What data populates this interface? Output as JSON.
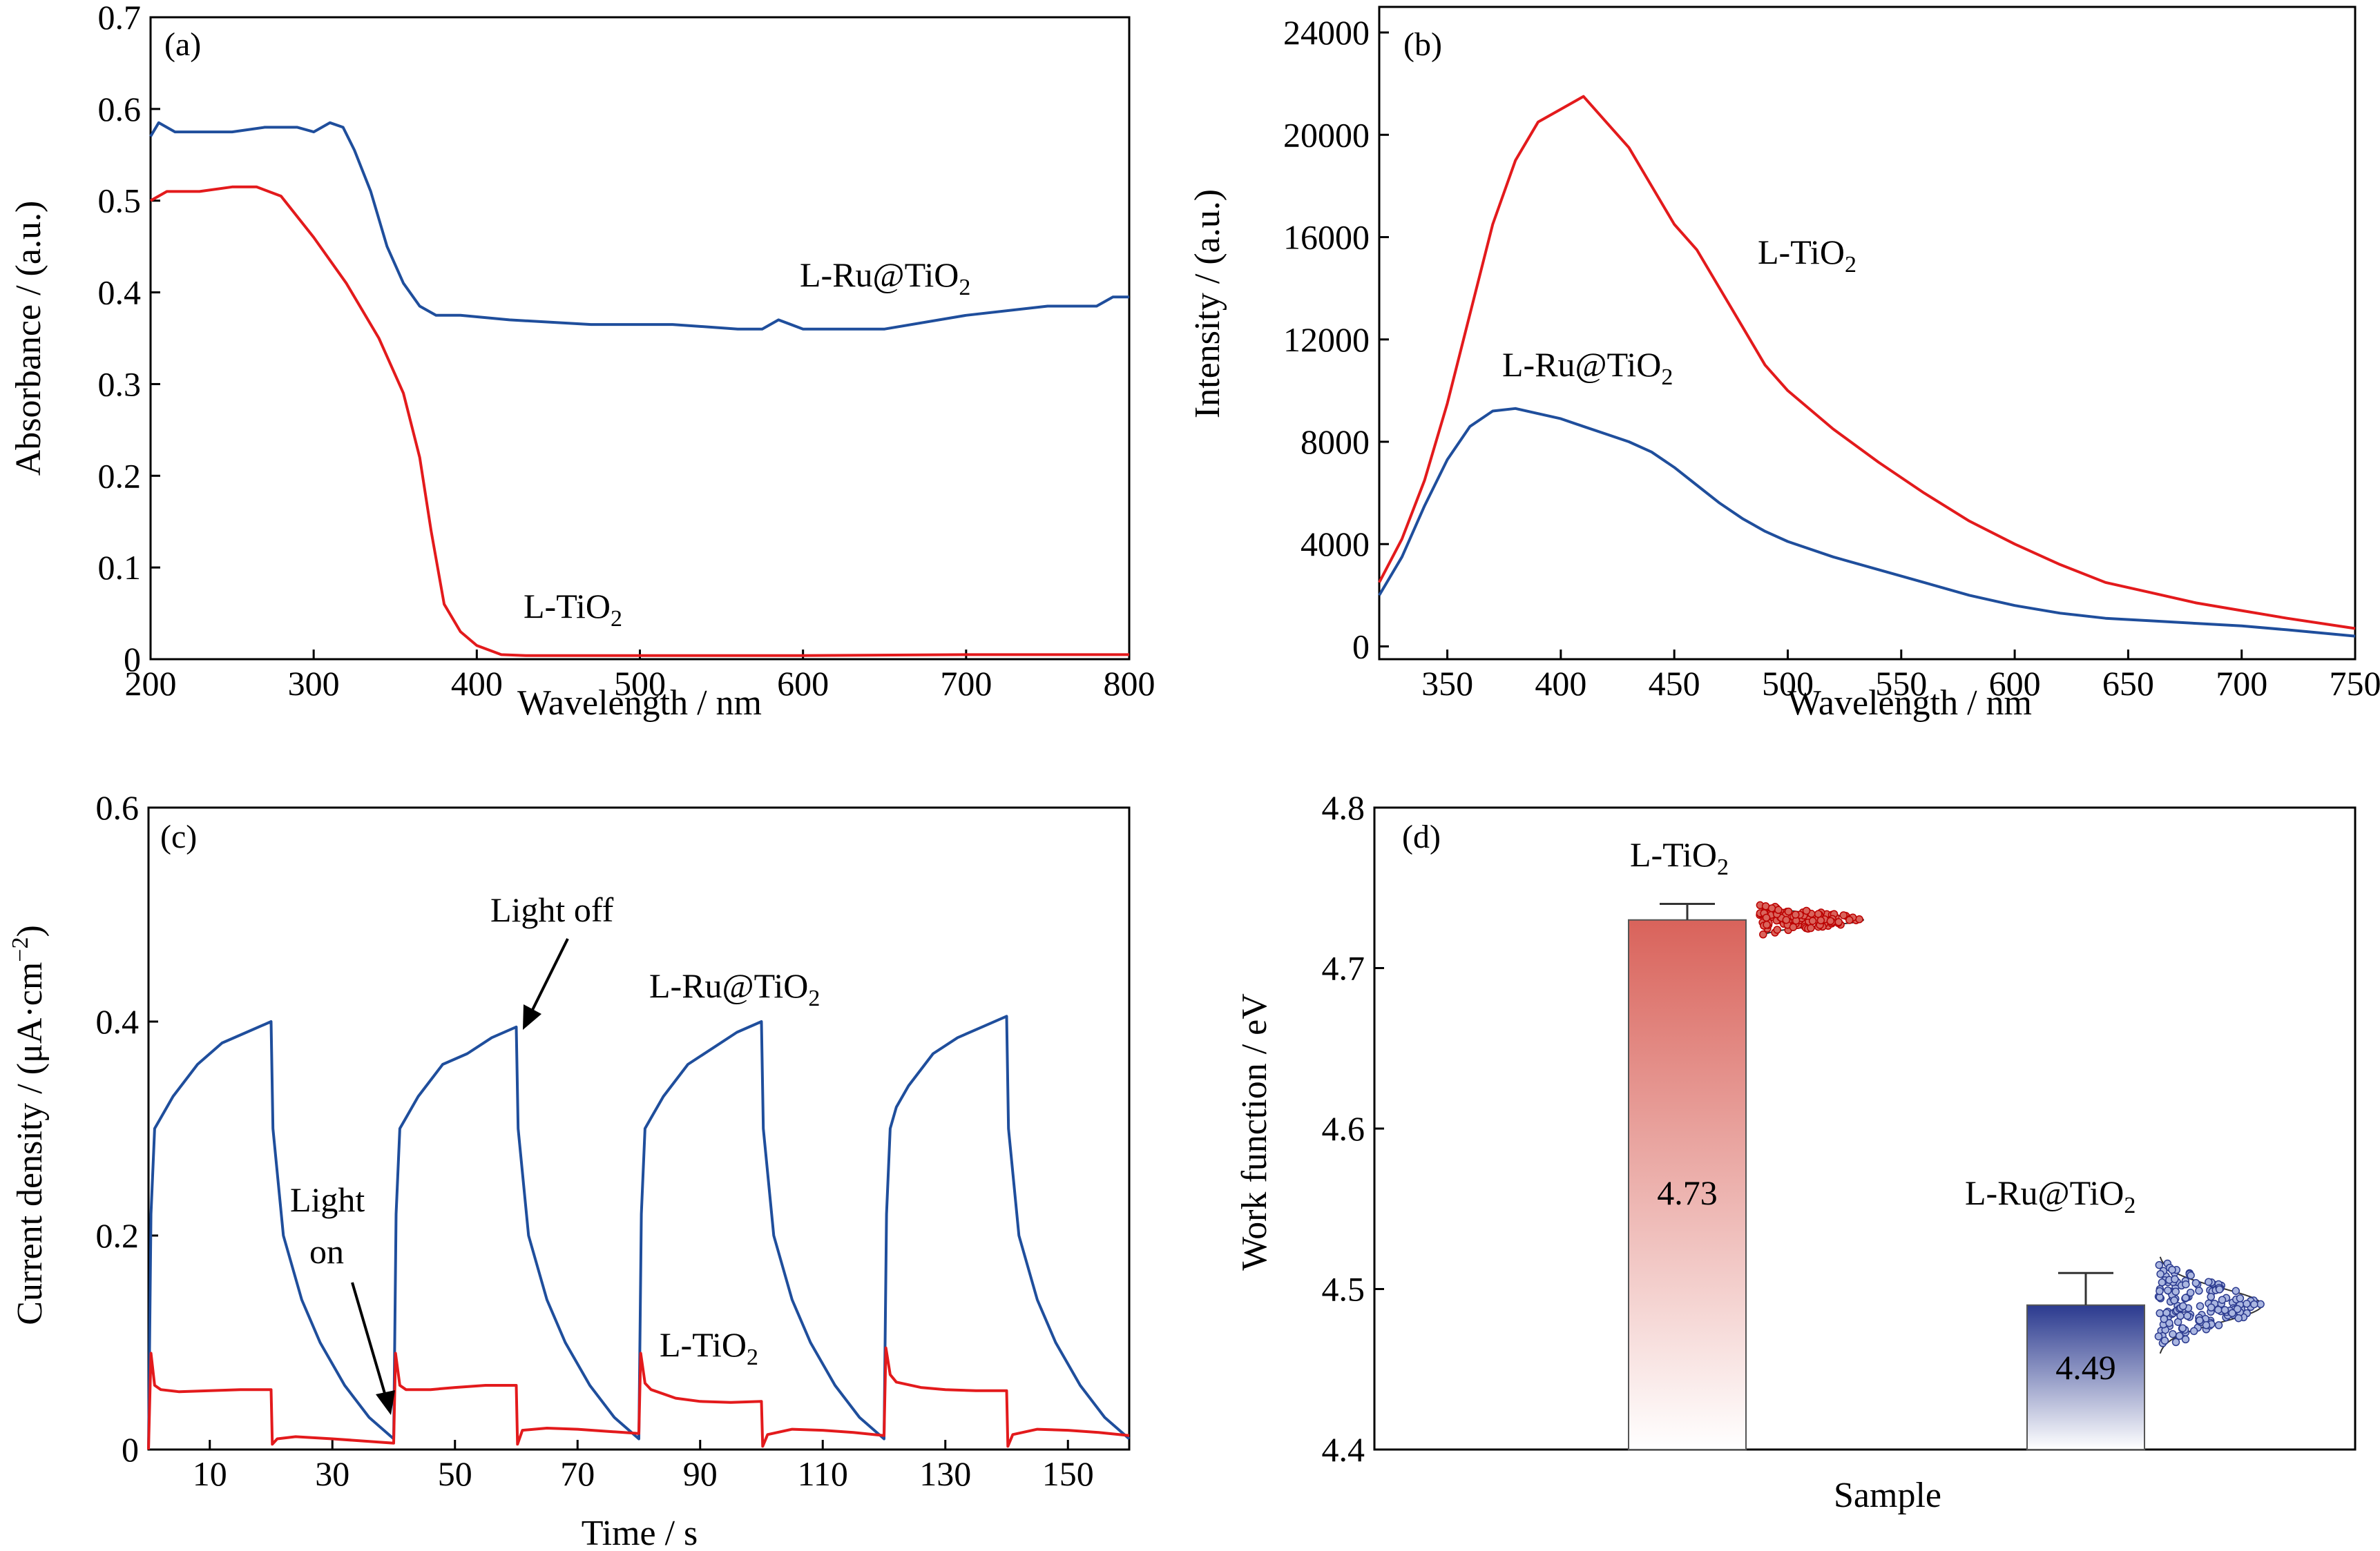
{
  "panels": [
    {
      "id": "a",
      "tag": "(a)",
      "xlabel": "Wavelength / nm",
      "ylabel": "Absorbance / (a.u.)",
      "xlim": [
        200,
        800
      ],
      "ylim": [
        0,
        0.7
      ],
      "xticks": [
        "200",
        "300",
        "400",
        "500",
        "600",
        "700",
        "800"
      ],
      "yticks": [
        "0",
        "0.1",
        "0.2",
        "0.3",
        "0.4",
        "0.5",
        "0.6",
        "0.7"
      ],
      "labels": {
        "ru": "L-Ru@TiO",
        "ti": "L-TiO",
        "sub": "2"
      }
    },
    {
      "id": "b",
      "tag": "(b)",
      "xlabel": "Wavelength / nm",
      "ylabel": "Intensity / (a.u.)",
      "xlim": [
        320,
        750
      ],
      "ylim": [
        -500,
        25000
      ],
      "xticks": [
        "350",
        "400",
        "450",
        "500",
        "550",
        "600",
        "650",
        "700",
        "750"
      ],
      "yticks": [
        "0",
        "4000",
        "8000",
        "12000",
        "16000",
        "20000",
        "24000"
      ],
      "labels": {
        "ru": "L-Ru@TiO",
        "ti": "L-TiO",
        "sub": "2"
      }
    },
    {
      "id": "c",
      "tag": "(c)",
      "xlabel": "Time / s",
      "ylabel": "Current density / (μA·cm",
      "ylabel_sup": "−2",
      "ylabel_end": ")",
      "xlim": [
        0,
        160
      ],
      "ylim": [
        0,
        0.6
      ],
      "xticks": [
        "10",
        "30",
        "50",
        "70",
        "90",
        "110",
        "130",
        "150"
      ],
      "yticks": [
        "0",
        "0.2",
        "0.4",
        "0.6"
      ],
      "labels": {
        "ru": "L-Ru@TiO",
        "ti": "L-TiO",
        "sub": "2",
        "light_off": "Light off",
        "light_on_1": "Light",
        "light_on_2": "on"
      }
    },
    {
      "id": "d",
      "tag": "(d)",
      "xlabel": "Sample",
      "ylabel": "Work function / eV",
      "ylim": [
        4.4,
        4.8
      ],
      "yticks": [
        "4.4",
        "4.5",
        "4.6",
        "4.7",
        "4.8"
      ],
      "labels": {
        "ru": "L-Ru@TiO",
        "ti": "L-TiO",
        "sub": "2"
      }
    }
  ],
  "chart_data": [
    {
      "panel": "a",
      "type": "line",
      "series": [
        {
          "name": "L-Ru@TiO2",
          "color": "#1f4e9c",
          "x": [
            200,
            205,
            215,
            230,
            250,
            270,
            290,
            300,
            310,
            318,
            325,
            335,
            345,
            355,
            365,
            375,
            390,
            420,
            470,
            520,
            560,
            575,
            585,
            600,
            650,
            700,
            750,
            780,
            790,
            800
          ],
          "y": [
            0.57,
            0.585,
            0.575,
            0.575,
            0.575,
            0.58,
            0.58,
            0.575,
            0.585,
            0.58,
            0.555,
            0.51,
            0.45,
            0.41,
            0.385,
            0.375,
            0.375,
            0.37,
            0.365,
            0.365,
            0.36,
            0.36,
            0.37,
            0.36,
            0.36,
            0.375,
            0.385,
            0.385,
            0.395,
            0.395
          ]
        },
        {
          "name": "L-TiO2",
          "color": "#e31a1c",
          "x": [
            200,
            210,
            230,
            250,
            265,
            280,
            300,
            320,
            340,
            355,
            365,
            372,
            380,
            390,
            400,
            415,
            430,
            500,
            600,
            700,
            800
          ],
          "y": [
            0.5,
            0.51,
            0.51,
            0.515,
            0.515,
            0.505,
            0.46,
            0.41,
            0.35,
            0.29,
            0.22,
            0.14,
            0.06,
            0.03,
            0.015,
            0.005,
            0.004,
            0.004,
            0.004,
            0.005,
            0.005
          ]
        }
      ]
    },
    {
      "panel": "b",
      "type": "line",
      "series": [
        {
          "name": "L-TiO2",
          "color": "#e31a1c",
          "x": [
            320,
            330,
            340,
            350,
            360,
            370,
            380,
            390,
            400,
            410,
            420,
            430,
            440,
            450,
            460,
            470,
            480,
            490,
            500,
            520,
            540,
            560,
            580,
            600,
            620,
            640,
            660,
            680,
            700,
            720,
            750
          ],
          "y": [
            2500,
            4200,
            6500,
            9500,
            13000,
            16500,
            19000,
            20500,
            21000,
            21500,
            20500,
            19500,
            18000,
            16500,
            15500,
            14000,
            12500,
            11000,
            10000,
            8500,
            7200,
            6000,
            4900,
            4000,
            3200,
            2500,
            2100,
            1700,
            1400,
            1100,
            700
          ]
        },
        {
          "name": "L-Ru@TiO2",
          "color": "#1f4e9c",
          "x": [
            320,
            330,
            340,
            350,
            360,
            370,
            380,
            390,
            400,
            410,
            420,
            430,
            440,
            450,
            460,
            470,
            480,
            490,
            500,
            520,
            540,
            560,
            580,
            600,
            620,
            640,
            660,
            680,
            700,
            720,
            750
          ],
          "y": [
            2000,
            3500,
            5500,
            7300,
            8600,
            9200,
            9300,
            9100,
            8900,
            8600,
            8300,
            8000,
            7600,
            7000,
            6300,
            5600,
            5000,
            4500,
            4100,
            3500,
            3000,
            2500,
            2000,
            1600,
            1300,
            1100,
            1000,
            900,
            800,
            650,
            400
          ]
        }
      ]
    },
    {
      "panel": "c",
      "type": "line",
      "series": [
        {
          "name": "L-Ru@TiO2",
          "color": "#1f4e9c",
          "x": [
            0,
            0.4,
            1,
            2,
            4,
            8,
            12,
            16,
            20,
            20.3,
            22,
            25,
            28,
            32,
            36,
            40,
            40.4,
            41,
            42,
            44,
            48,
            52,
            56,
            60,
            60.3,
            62,
            65,
            68,
            72,
            76,
            80,
            80.4,
            81,
            82,
            84,
            88,
            92,
            96,
            100,
            100.3,
            102,
            105,
            108,
            112,
            116,
            120,
            120.4,
            121,
            122,
            124,
            128,
            132,
            136,
            140,
            140.3,
            142,
            145,
            148,
            152,
            156,
            160
          ],
          "y": [
            0.0,
            0.22,
            0.3,
            0.31,
            0.33,
            0.36,
            0.38,
            0.39,
            0.4,
            0.3,
            0.2,
            0.14,
            0.1,
            0.06,
            0.03,
            0.01,
            0.22,
            0.3,
            0.31,
            0.33,
            0.36,
            0.37,
            0.385,
            0.395,
            0.3,
            0.2,
            0.14,
            0.1,
            0.06,
            0.03,
            0.01,
            0.22,
            0.3,
            0.31,
            0.33,
            0.36,
            0.375,
            0.39,
            0.4,
            0.3,
            0.2,
            0.14,
            0.1,
            0.06,
            0.03,
            0.01,
            0.22,
            0.3,
            0.32,
            0.34,
            0.37,
            0.385,
            0.395,
            0.405,
            0.3,
            0.2,
            0.14,
            0.1,
            0.06,
            0.03,
            0.01
          ]
        },
        {
          "name": "L-TiO2",
          "color": "#e31a1c",
          "x": [
            0,
            0.4,
            1,
            2,
            5,
            10,
            15,
            20,
            20.2,
            21,
            24,
            30,
            35,
            40,
            40.3,
            41,
            42,
            46,
            50,
            55,
            60,
            60.2,
            61,
            65,
            70,
            75,
            80,
            80.3,
            81,
            82,
            86,
            90,
            95,
            100,
            100.2,
            101,
            105,
            110,
            115,
            120,
            120.3,
            121,
            122,
            126,
            130,
            135,
            140,
            140.2,
            141,
            145,
            150,
            155,
            160
          ],
          "y": [
            0.0,
            0.09,
            0.06,
            0.056,
            0.054,
            0.055,
            0.056,
            0.056,
            0.005,
            0.01,
            0.012,
            0.01,
            0.008,
            0.006,
            0.09,
            0.06,
            0.056,
            0.056,
            0.058,
            0.06,
            0.06,
            0.005,
            0.018,
            0.02,
            0.019,
            0.017,
            0.015,
            0.09,
            0.062,
            0.056,
            0.048,
            0.045,
            0.044,
            0.045,
            0.003,
            0.014,
            0.019,
            0.018,
            0.016,
            0.013,
            0.095,
            0.07,
            0.063,
            0.058,
            0.056,
            0.055,
            0.055,
            0.003,
            0.014,
            0.019,
            0.018,
            0.016,
            0.013
          ]
        }
      ]
    },
    {
      "panel": "d",
      "type": "bar",
      "categories": [
        "L-TiO2",
        "L-Ru@TiO2"
      ],
      "values": [
        4.73,
        4.49
      ],
      "errors": [
        0.01,
        0.02
      ],
      "value_labels": [
        "4.73",
        "4.49"
      ],
      "colors": [
        "#d9635b",
        "#3c4598"
      ]
    }
  ]
}
